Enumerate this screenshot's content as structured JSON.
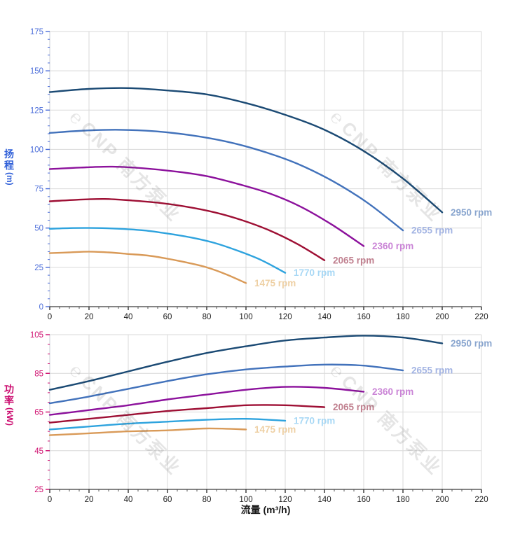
{
  "watermark": {
    "logo": "℮",
    "text": "CNP 南方泵业"
  },
  "x_axis": {
    "title": "流量 (m³/h)",
    "min": 0,
    "max": 220,
    "major_step": 20,
    "minor_step": 5,
    "ticks": [
      0,
      20,
      40,
      60,
      80,
      100,
      120,
      140,
      160,
      180,
      200,
      220
    ],
    "tick_color": "#1a1a1a"
  },
  "chart_data": [
    {
      "type": "line",
      "id": "head-vs-flow",
      "ylabel": "扬程",
      "ylabel_unit": "(m)",
      "xlabel": "流量 (m³/h)",
      "axis_color": "#2f5fd8",
      "tick_label_color": "#4a6cd9",
      "ylim": [
        0,
        175
      ],
      "yticks": [
        0,
        25,
        50,
        75,
        100,
        125,
        150,
        175
      ],
      "y_minor_step": 5,
      "xlim": [
        0,
        220
      ],
      "grid": true,
      "legend_position": "curve-end-labels",
      "series": [
        {
          "name": "2950 rpm",
          "color": "#1b4a74",
          "label_color": "#8aa6cf",
          "points": [
            [
              0,
              136.5
            ],
            [
              20,
              138.5
            ],
            [
              40,
              139
            ],
            [
              60,
              137.5
            ],
            [
              80,
              135
            ],
            [
              100,
              129.5
            ],
            [
              120,
              122
            ],
            [
              140,
              112.5
            ],
            [
              160,
              99
            ],
            [
              180,
              81.5
            ],
            [
              200,
              60
            ]
          ]
        },
        {
          "name": "2655 rpm",
          "color": "#4272bb",
          "label_color": "#a3b4e3",
          "points": [
            [
              0,
              110.5
            ],
            [
              18,
              112
            ],
            [
              36,
              112.5
            ],
            [
              54,
              111.5
            ],
            [
              72,
              109
            ],
            [
              90,
              105
            ],
            [
              108,
              99
            ],
            [
              126,
              91
            ],
            [
              144,
              80
            ],
            [
              162,
              66
            ],
            [
              180,
              48.5
            ]
          ]
        },
        {
          "name": "2360 rpm",
          "color": "#8c119c",
          "label_color": "#ca84d6",
          "points": [
            [
              0,
              87.5
            ],
            [
              16,
              88.5
            ],
            [
              32,
              89
            ],
            [
              48,
              88
            ],
            [
              64,
              86
            ],
            [
              80,
              83
            ],
            [
              96,
              78
            ],
            [
              112,
              72
            ],
            [
              128,
              63.5
            ],
            [
              144,
              52
            ],
            [
              160,
              38.5
            ]
          ]
        },
        {
          "name": "2065 rpm",
          "color": "#9e0f34",
          "label_color": "#c0808f",
          "points": [
            [
              0,
              67
            ],
            [
              14,
              68
            ],
            [
              28,
              68.5
            ],
            [
              42,
              67.5
            ],
            [
              56,
              66
            ],
            [
              70,
              63.5
            ],
            [
              84,
              60
            ],
            [
              98,
              55
            ],
            [
              112,
              48.5
            ],
            [
              126,
              40
            ],
            [
              140,
              29.5
            ]
          ]
        },
        {
          "name": "1770 rpm",
          "color": "#2ea3de",
          "label_color": "#a8d8f5",
          "points": [
            [
              0,
              49.5
            ],
            [
              12,
              50
            ],
            [
              24,
              50
            ],
            [
              36,
              49.5
            ],
            [
              48,
              48.5
            ],
            [
              60,
              46.5
            ],
            [
              72,
              44
            ],
            [
              84,
              40.5
            ],
            [
              96,
              35.5
            ],
            [
              108,
              29.5
            ],
            [
              120,
              21.5
            ]
          ]
        },
        {
          "name": "1475 rpm",
          "color": "#d99a58",
          "label_color": "#eed0a4",
          "points": [
            [
              0,
              34
            ],
            [
              10,
              34.5
            ],
            [
              20,
              35
            ],
            [
              30,
              34.5
            ],
            [
              40,
              33.5
            ],
            [
              50,
              32.5
            ],
            [
              60,
              30.5
            ],
            [
              70,
              28
            ],
            [
              80,
              25
            ],
            [
              90,
              20.5
            ],
            [
              100,
              15
            ]
          ]
        }
      ]
    },
    {
      "type": "line",
      "id": "power-vs-flow",
      "ylabel": "功率",
      "ylabel_unit": "(kW)",
      "xlabel": "流量 (m³/h)",
      "axis_color": "#cb0a6e",
      "tick_label_color": "#cf0d6e",
      "ylim": [
        25,
        105
      ],
      "yticks": [
        25,
        45,
        65,
        85,
        105
      ],
      "y_minor_step": 5,
      "xlim": [
        0,
        220
      ],
      "grid": true,
      "legend_position": "curve-end-labels",
      "series": [
        {
          "name": "2950 rpm",
          "color": "#1b4a74",
          "label_color": "#8aa6cf",
          "points": [
            [
              0,
              76.5
            ],
            [
              20,
              81
            ],
            [
              40,
              86
            ],
            [
              60,
              91
            ],
            [
              80,
              95.5
            ],
            [
              100,
              99
            ],
            [
              120,
              102
            ],
            [
              140,
              103.5
            ],
            [
              160,
              104.5
            ],
            [
              180,
              103.5
            ],
            [
              200,
              100.5
            ]
          ]
        },
        {
          "name": "2655 rpm",
          "color": "#4272bb",
          "label_color": "#a3b4e3",
          "points": [
            [
              0,
              69.5
            ],
            [
              20,
              73
            ],
            [
              40,
              77
            ],
            [
              60,
              81
            ],
            [
              80,
              84.5
            ],
            [
              100,
              87
            ],
            [
              120,
              88.5
            ],
            [
              140,
              89.5
            ],
            [
              160,
              89
            ],
            [
              180,
              86.5
            ]
          ]
        },
        {
          "name": "2360 rpm",
          "color": "#8c119c",
          "label_color": "#ca84d6",
          "points": [
            [
              0,
              63.5
            ],
            [
              20,
              66
            ],
            [
              40,
              68.5
            ],
            [
              60,
              71.5
            ],
            [
              80,
              74
            ],
            [
              100,
              76.5
            ],
            [
              120,
              78
            ],
            [
              140,
              77.5
            ],
            [
              160,
              75.5
            ]
          ]
        },
        {
          "name": "2065 rpm",
          "color": "#9e0f34",
          "label_color": "#c0808f",
          "points": [
            [
              0,
              59.5
            ],
            [
              20,
              61.5
            ],
            [
              40,
              63.5
            ],
            [
              60,
              65.5
            ],
            [
              80,
              67
            ],
            [
              100,
              68.5
            ],
            [
              120,
              68.5
            ],
            [
              140,
              67.5
            ]
          ]
        },
        {
          "name": "1770 rpm",
          "color": "#2ea3de",
          "label_color": "#a8d8f5",
          "points": [
            [
              0,
              56
            ],
            [
              20,
              57.5
            ],
            [
              40,
              59
            ],
            [
              60,
              60
            ],
            [
              80,
              61
            ],
            [
              100,
              61.5
            ],
            [
              120,
              60.5
            ]
          ]
        },
        {
          "name": "1475 rpm",
          "color": "#d99a58",
          "label_color": "#eed0a4",
          "points": [
            [
              0,
              53
            ],
            [
              20,
              54
            ],
            [
              40,
              55
            ],
            [
              60,
              55.5
            ],
            [
              80,
              56.5
            ],
            [
              100,
              56
            ]
          ]
        }
      ]
    }
  ]
}
